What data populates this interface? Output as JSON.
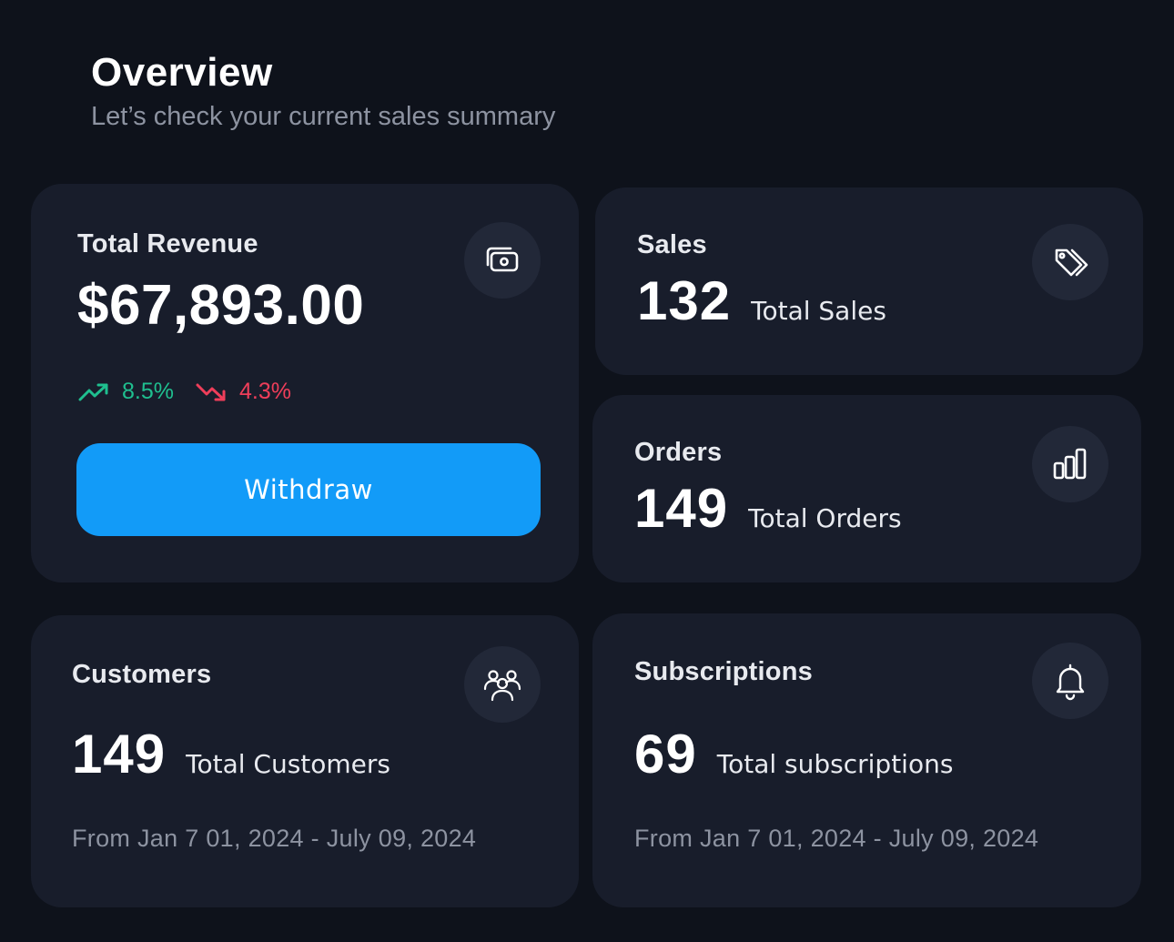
{
  "header": {
    "title": "Overview",
    "subtitle": "Let’s check your current sales summary"
  },
  "revenue": {
    "label": "Total Revenue",
    "amount": "$67,893.00",
    "icon": "money-icon",
    "trend_up": "8.5%",
    "trend_down": "4.3%",
    "withdraw_label": "Withdraw"
  },
  "sales": {
    "label": "Sales",
    "value": "132",
    "caption": "Total Sales",
    "icon": "tag-icon"
  },
  "orders": {
    "label": "Orders",
    "value": "149",
    "caption": "Total Orders",
    "icon": "bar-chart-icon"
  },
  "customers": {
    "label": "Customers",
    "value": "149",
    "caption": "Total Customers",
    "date_range": "From Jan 7 01, 2024 - July 09, 2024",
    "icon": "users-icon"
  },
  "subscriptions": {
    "label": "Subscriptions",
    "value": "69",
    "caption": "Total subscriptions",
    "date_range": "From Jan 7 01, 2024 - July 09, 2024",
    "icon": "bell-icon"
  },
  "colors": {
    "background": "#0e121b",
    "card": "#181d2b",
    "accent": "#129bf8",
    "positive": "#1fbf8f",
    "negative": "#ef3e5a"
  }
}
